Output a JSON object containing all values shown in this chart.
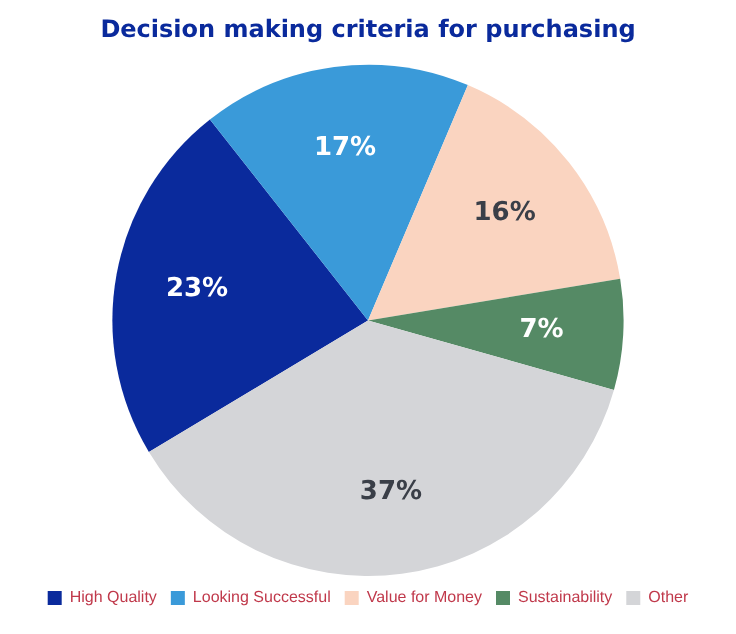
{
  "chart_data": {
    "type": "pie",
    "title": "Decision making criteria for purchasing",
    "categories": [
      "High Quality",
      "Looking Successful",
      "Value for Money",
      "Sustainability",
      "Other"
    ],
    "values": [
      23,
      17,
      16,
      7,
      37
    ],
    "colors": [
      "#0a2a9c",
      "#3a9ad9",
      "#fad4c0",
      "#558a65",
      "#d4d5d8"
    ],
    "value_labels": [
      "23%",
      "17%",
      "16%",
      "7%",
      "37%"
    ],
    "legend": "bottom"
  }
}
